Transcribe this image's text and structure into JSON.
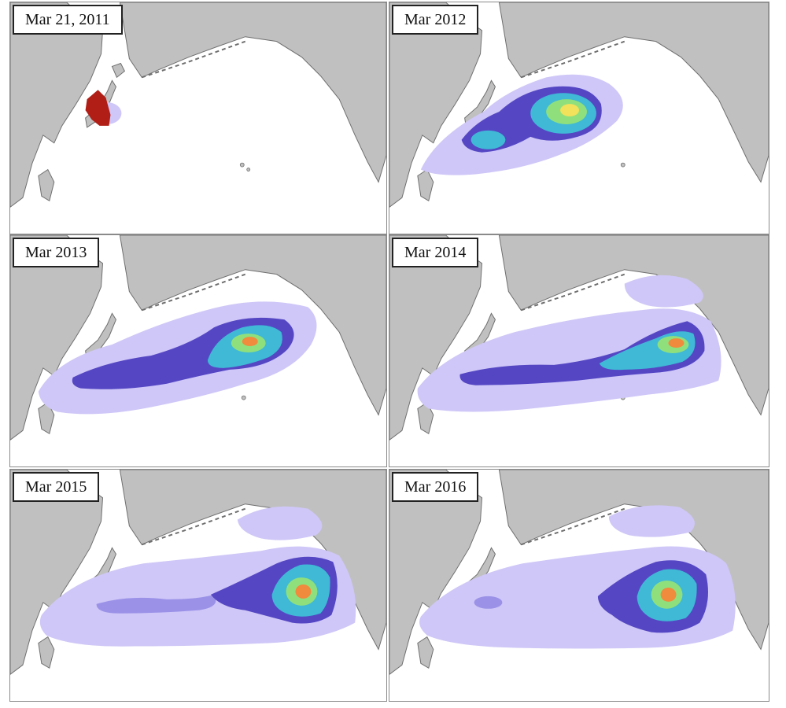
{
  "colors": {
    "land": "#c0c0c0",
    "coast": "#6f6f6f",
    "ocean": "#ffffff",
    "density_low": "#cfc7f7",
    "density_mid": "#5547c4",
    "density_high": "#2c2896",
    "density_peak": [
      "#3fb9d6",
      "#8fe07c",
      "#f2e15a",
      "#f08a3c",
      "#c8282a"
    ],
    "initial_debris": "#b01e16"
  },
  "panels": [
    {
      "label": "Mar 21, 2011"
    },
    {
      "label": "Mar 2012"
    },
    {
      "label": "Mar 2013"
    },
    {
      "label": "Mar 2014"
    },
    {
      "label": "Mar 2015"
    },
    {
      "label": "Mar 2016"
    }
  ]
}
